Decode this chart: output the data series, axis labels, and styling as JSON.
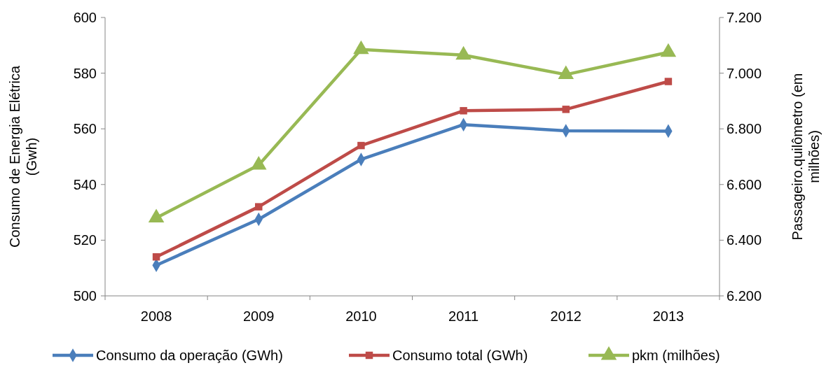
{
  "chart_data": {
    "type": "line",
    "categories": [
      "2008",
      "2009",
      "2010",
      "2011",
      "2012",
      "2013"
    ],
    "ylabel": "Consumo de Energia Elétrica (Gwh)",
    "y2label": "Passageiro.quilômetro (em milhões)",
    "ylim": [
      500,
      600
    ],
    "yticks": [
      500,
      520,
      540,
      560,
      580,
      600
    ],
    "y2lim": [
      6200,
      7200
    ],
    "y2ticks": [
      {
        "value": 6200,
        "label": "6.200"
      },
      {
        "value": 6400,
        "label": "6.400"
      },
      {
        "value": 6600,
        "label": "6.600"
      },
      {
        "value": 6800,
        "label": "6.800"
      },
      {
        "value": 7000,
        "label": "7.000"
      },
      {
        "value": 7200,
        "label": "7.200"
      }
    ],
    "grid": false,
    "legend": "bottom",
    "series": [
      {
        "name": "Consumo da operação (GWh)",
        "color": "#4a7ebb",
        "marker": "diamond",
        "values": [
          511,
          527.5,
          549,
          561.5,
          559.3,
          559.2
        ]
      },
      {
        "name": "Consumo total (GWh)",
        "color": "#be4b48",
        "marker": "square",
        "values": [
          514,
          532,
          554,
          566.5,
          567,
          577
        ]
      },
      {
        "name": "pkm (milhões)",
        "color": "#98b954",
        "marker": "triangle",
        "axis": "y2",
        "values": [
          6480,
          6670,
          7085,
          7065,
          6995,
          7075
        ]
      }
    ]
  }
}
